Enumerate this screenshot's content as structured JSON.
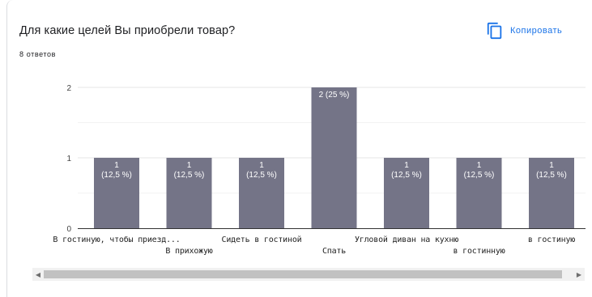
{
  "header": {
    "title": "Для какие целей Вы приобрели товар?",
    "answers_count": "8 ответов",
    "copy_label": "Копировать",
    "copy_icon": "copy-icon"
  },
  "colors": {
    "bar": "#747487",
    "accent": "#1a73e8",
    "grid": "#e6e6e6",
    "axis": "#333333",
    "label_on_bar": "#ffffff"
  },
  "chart_data": {
    "type": "bar",
    "categories": [
      "В гостиную, чтобы приезд...",
      "В прихожую",
      "Сидеть в гостиной",
      "Спать",
      "Угловой диван на кухню",
      "в гостинную",
      "в гостиную"
    ],
    "values": [
      1,
      1,
      1,
      2,
      1,
      1,
      1
    ],
    "data_labels": [
      [
        "1",
        "(12,5 %)"
      ],
      [
        "1",
        "(12,5 %)"
      ],
      [
        "1",
        "(12,5 %)"
      ],
      [
        "2 (25 %)"
      ],
      [
        "1",
        "(12,5 %)"
      ],
      [
        "1",
        "(12,5 %)"
      ],
      [
        "1",
        "(12,5 %)"
      ]
    ],
    "yticks": [
      "0",
      "1",
      "2"
    ],
    "ylim": [
      0,
      2
    ],
    "grid": true,
    "title": "Для какие целей Вы приобрели товар?"
  },
  "scrollbar": {
    "left_arrow_icon": "scroll-left-arrow-icon",
    "right_arrow_icon": "scroll-right-arrow-icon"
  }
}
